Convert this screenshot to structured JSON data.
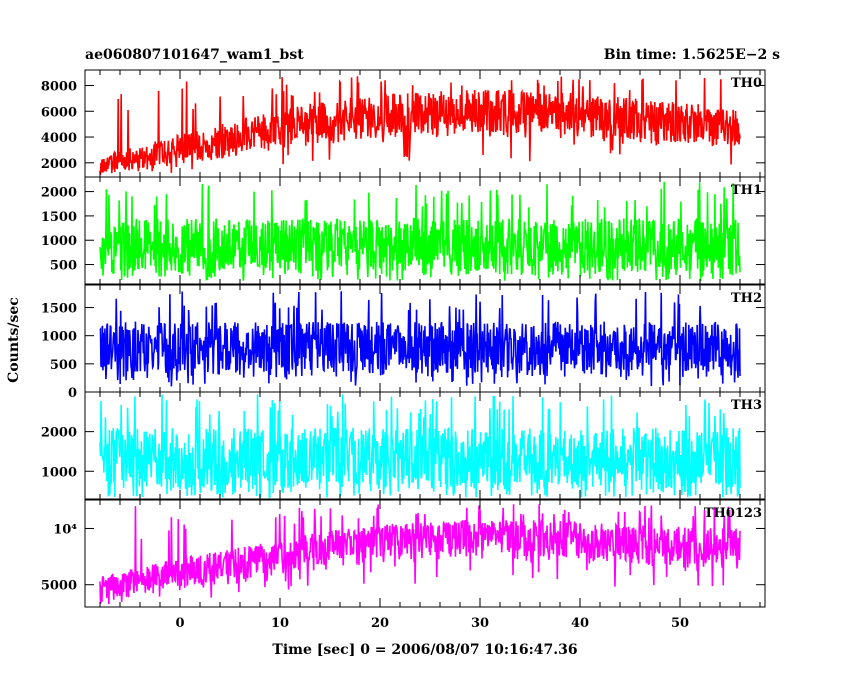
{
  "header": {
    "left_title": "ae060807101647_wam1_bst",
    "right_title": "Bin time: 1.5625E−2 s"
  },
  "chart_data": {
    "type": "line",
    "title": "ae060807101647_wam1_bst",
    "subtitle": "Bin time: 1.5625E−2 s",
    "xlabel": "Time [sec] 0 = 2006/08/07 10:16:47.36",
    "ylabel": "Counts/sec",
    "xlim": [
      -9.5,
      58.5
    ],
    "x_ticks": [
      0,
      10,
      20,
      30,
      40,
      50
    ],
    "x_tick_labels": [
      "0",
      "10",
      "20",
      "30",
      "40",
      "50"
    ],
    "x_data_range": [
      -8,
      56
    ],
    "grid": false,
    "panels": [
      {
        "name": "TH0",
        "color": "#ff0000",
        "ylim": [
          900,
          9200
        ],
        "y_ticks": [
          2000,
          4000,
          6000,
          8000
        ],
        "y_tick_labels": [
          "2000",
          "4000",
          "6000",
          "8000"
        ],
        "y_scale": "linear",
        "envelope_x": [
          -8,
          0,
          8,
          14,
          20,
          26,
          32,
          40,
          48,
          56
        ],
        "envelope_low": [
          900,
          1800,
          2800,
          3300,
          3700,
          4000,
          4000,
          3700,
          3300,
          3000
        ],
        "envelope_high": [
          2500,
          4200,
          5800,
          6800,
          7300,
          7600,
          7700,
          7400,
          6800,
          6300
        ],
        "peak_max": 8800
      },
      {
        "name": "TH1",
        "color": "#00ff00",
        "ylim": [
          100,
          2300
        ],
        "y_ticks": [
          500,
          1000,
          1500,
          2000
        ],
        "y_tick_labels": [
          "500",
          "1000",
          "1500",
          "2000"
        ],
        "y_scale": "linear",
        "envelope_x": [
          -8,
          56
        ],
        "envelope_low": [
          250,
          250
        ],
        "envelope_high": [
          1450,
          1450
        ],
        "peak_max": 2200
      },
      {
        "name": "TH2",
        "color": "#0000ff",
        "ylim": [
          0,
          1900
        ],
        "y_ticks": [
          0,
          500,
          1000,
          1500
        ],
        "y_tick_labels": [
          "0",
          "500",
          "1000",
          "1500"
        ],
        "y_scale": "linear",
        "envelope_x": [
          -8,
          56
        ],
        "envelope_low": [
          250,
          250
        ],
        "envelope_high": [
          1250,
          1250
        ],
        "peak_max": 1800
      },
      {
        "name": "TH3",
        "color": "#00ffff",
        "ylim": [
          300,
          3000
        ],
        "y_ticks": [
          1000,
          2000
        ],
        "y_tick_labels": [
          "1000",
          "2000"
        ],
        "y_scale": "linear",
        "envelope_x": [
          -8,
          56
        ],
        "envelope_low": [
          400,
          400
        ],
        "envelope_high": [
          2100,
          2100
        ],
        "peak_max": 2950
      },
      {
        "name": "TH0123",
        "color": "#ff00ff",
        "ylim": [
          3800,
          14200
        ],
        "y_ticks": [
          5000,
          10000
        ],
        "y_tick_labels": [
          "5000",
          "10⁴"
        ],
        "y_scale": "log",
        "envelope_x": [
          -8,
          0,
          8,
          14,
          20,
          26,
          32,
          40,
          48,
          56
        ],
        "envelope_low": [
          4000,
          4600,
          5300,
          6000,
          6500,
          6800,
          6800,
          6500,
          6200,
          6000
        ],
        "envelope_high": [
          5600,
          6900,
          8300,
          9600,
          10500,
          11000,
          11200,
          10900,
          10300,
          10000
        ],
        "peak_max": 13500
      }
    ]
  }
}
